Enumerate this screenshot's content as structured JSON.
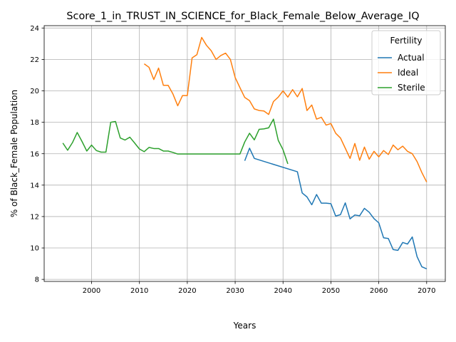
{
  "chart_data": {
    "type": "line",
    "title": "Score_1_in_TRUST_IN_SCIENCE_for_Black_Female_Below_Average_IQ",
    "xlabel": "Years",
    "ylabel": "% of Black_Female Population",
    "xlim": [
      1990.1,
      2073.9
    ],
    "ylim": [
      7.87,
      24.15
    ],
    "xticks": [
      2000,
      2010,
      2020,
      2030,
      2040,
      2050,
      2060,
      2070
    ],
    "yticks": [
      8,
      10,
      12,
      14,
      16,
      18,
      20,
      22,
      24
    ],
    "grid": true,
    "legend": {
      "title": "Fertility",
      "placement": "top-right"
    },
    "series": [
      {
        "name": "Actual",
        "color": "#1f77b4",
        "x": [
          2032,
          2033,
          2034,
          2043,
          2044,
          2045,
          2046,
          2047,
          2048,
          2049,
          2050,
          2051,
          2052,
          2053,
          2054,
          2055,
          2056,
          2057,
          2058,
          2059,
          2060,
          2061,
          2062,
          2063,
          2064,
          2065,
          2066,
          2067,
          2068,
          2069,
          2070
        ],
        "y": [
          15.55,
          16.35,
          15.7,
          14.85,
          13.5,
          13.25,
          12.75,
          13.4,
          12.85,
          12.85,
          12.82,
          12.03,
          12.12,
          12.87,
          11.85,
          12.1,
          12.05,
          12.52,
          12.27,
          11.87,
          11.6,
          10.65,
          10.6,
          9.9,
          9.85,
          10.35,
          10.25,
          10.7,
          9.45,
          8.8,
          8.67
        ]
      },
      {
        "name": "Ideal",
        "color": "#ff7f0e",
        "x": [
          2011,
          2012,
          2013,
          2014,
          2015,
          2016,
          2017,
          2018,
          2019,
          2020,
          2021,
          2022,
          2023,
          2024,
          2025,
          2026,
          2027,
          2028,
          2029,
          2030,
          2031,
          2032,
          2033,
          2034,
          2035,
          2036,
          2037,
          2038,
          2039,
          2040,
          2041,
          2042,
          2043,
          2044,
          2045,
          2046,
          2047,
          2048,
          2049,
          2050,
          2051,
          2052,
          2053,
          2054,
          2055,
          2056,
          2057,
          2058,
          2059,
          2060,
          2061,
          2062,
          2063,
          2064,
          2065,
          2066,
          2067,
          2068,
          2069,
          2070
        ],
        "y": [
          21.72,
          21.5,
          20.72,
          21.45,
          20.35,
          20.35,
          19.8,
          19.05,
          19.7,
          19.7,
          22.1,
          22.3,
          23.4,
          22.9,
          22.55,
          22.0,
          22.25,
          22.4,
          22.0,
          20.85,
          20.2,
          19.58,
          19.38,
          18.85,
          18.75,
          18.72,
          18.5,
          19.32,
          19.6,
          20.0,
          19.6,
          20.08,
          19.62,
          20.15,
          18.75,
          19.1,
          18.2,
          18.32,
          17.82,
          17.92,
          17.3,
          17.0,
          16.35,
          15.7,
          16.65,
          15.58,
          16.42,
          15.65,
          16.15,
          15.8,
          16.2,
          15.95,
          16.55,
          16.25,
          16.48,
          16.15,
          16.0,
          15.5,
          14.8,
          14.2
        ]
      },
      {
        "name": "Sterile",
        "color": "#2ca02c",
        "x": [
          1994,
          1995,
          1996,
          1997,
          1998,
          1999,
          2000,
          2001,
          2002,
          2003,
          2004,
          2005,
          2006,
          2007,
          2008,
          2009,
          2010,
          2011,
          2012,
          2013,
          2014,
          2015,
          2016,
          2017,
          2018,
          2019,
          2020,
          2021,
          2022,
          2023,
          2024,
          2025,
          2026,
          2027,
          2028,
          2029,
          2030,
          2031,
          2032,
          2033,
          2034,
          2035,
          2036,
          2037,
          2038,
          2039,
          2040,
          2041
        ],
        "y": [
          16.68,
          16.22,
          16.7,
          17.35,
          16.78,
          16.17,
          16.55,
          16.2,
          16.1,
          16.1,
          18.0,
          18.05,
          17.0,
          16.87,
          17.05,
          16.68,
          16.3,
          16.13,
          16.4,
          16.33,
          16.33,
          16.17,
          16.17,
          16.08,
          15.98,
          15.98,
          15.98,
          15.98,
          15.98,
          15.98,
          15.98,
          15.98,
          15.98,
          15.98,
          15.98,
          15.98,
          15.98,
          15.98,
          16.75,
          17.3,
          16.88,
          17.55,
          17.58,
          17.65,
          18.2,
          16.85,
          16.25,
          15.35
        ]
      }
    ]
  }
}
